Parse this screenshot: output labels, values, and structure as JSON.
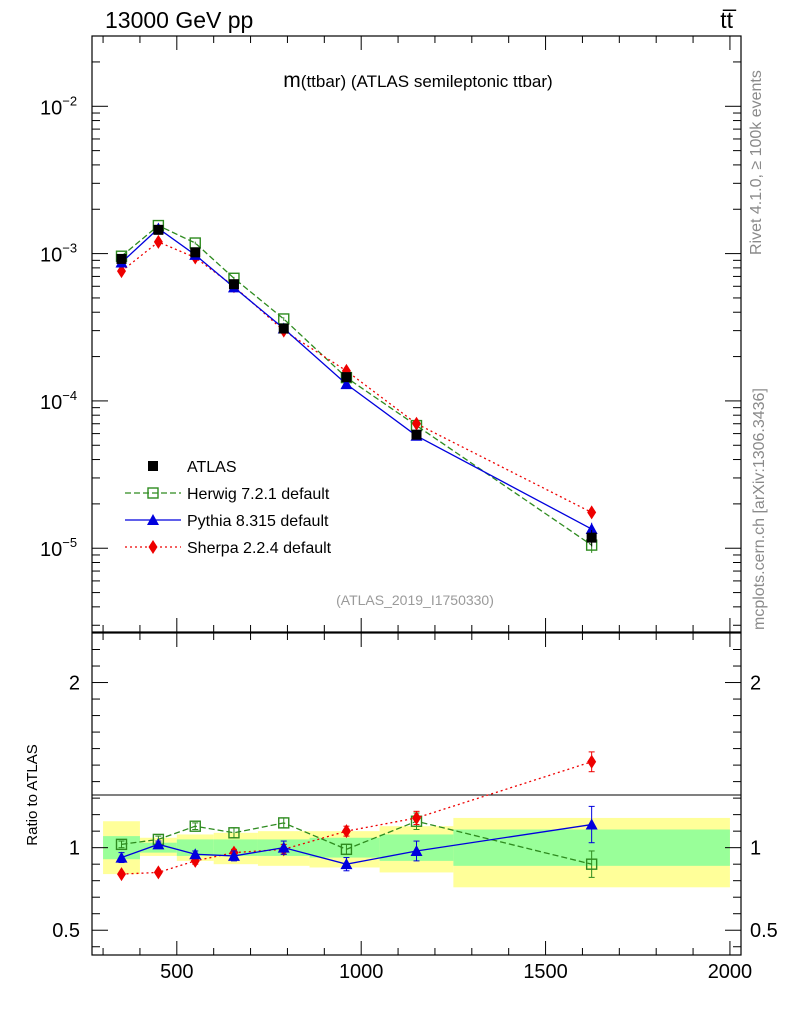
{
  "header": {
    "energy_label": "13000 GeV pp",
    "process_label": "tt̅"
  },
  "side_text": {
    "rivet": "Rivet 4.1.0, ≥ 100k events",
    "mcplots": "mcplots.cern.ch [arXiv:1306.3436]"
  },
  "colors": {
    "herwig": "#2e8b1f",
    "pythia": "#0000dd",
    "sherpa": "#ee0000",
    "atlas": "#000000",
    "band_inner": "#99ff99",
    "band_outer": "#ffff99",
    "analysis_tag": "#9a9a9a"
  },
  "chart_data": [
    {
      "type": "line",
      "panel": "main",
      "title": "m(ttbar) (ATLAS semileptonic ttbar)",
      "title_prefix": "m",
      "title_rest": "(ttbar) (ATLAS semileptonic ttbar)",
      "analysis_tag": "(ATLAS_2019_I1750330)",
      "y_scale": "log",
      "xlim": [
        270,
        2030
      ],
      "ylim": [
        2.7e-06,
        0.03
      ],
      "y_ticks": [
        {
          "base": "10",
          "exp": "−5",
          "value": 1e-05
        },
        {
          "base": "10",
          "exp": "−4",
          "value": 0.0001
        },
        {
          "base": "10",
          "exp": "−3",
          "value": 0.001
        },
        {
          "base": "10",
          "exp": "−2",
          "value": 0.01
        }
      ],
      "x": [
        350,
        450,
        550,
        655,
        790,
        960,
        1150,
        1625
      ],
      "series": [
        {
          "name": "ATLAS",
          "style": "data",
          "values": [
            0.00092,
            0.00145,
            0.00102,
            0.00062,
            0.00031,
            0.000145,
            5.9e-05,
            1.18e-05
          ],
          "errors": [
            4e-05,
            5e-05,
            4e-05,
            2.5e-05,
            1.5e-05,
            8e-06,
            4e-06,
            1.5e-06
          ]
        },
        {
          "name": "Herwig 7.2.1 default",
          "style": "herwig",
          "values": [
            0.00096,
            0.00155,
            0.00118,
            0.00068,
            0.00036,
            0.000144,
            6.8e-05,
            1.05e-05
          ],
          "errors": [
            2e-05,
            3e-05,
            2.5e-05,
            1.5e-05,
            1e-05,
            6e-06,
            3e-06,
            1.2e-06
          ]
        },
        {
          "name": "Pythia 8.315 default",
          "style": "pythia",
          "values": [
            0.00087,
            0.00148,
            0.00098,
            0.00059,
            0.00031,
            0.00013,
            5.8e-05,
            1.35e-05
          ],
          "errors": [
            2e-05,
            3e-05,
            2.5e-05,
            1.5e-05,
            1e-05,
            6e-06,
            3e-06,
            1.4e-06
          ]
        },
        {
          "name": "Sherpa 2.2.4 default",
          "style": "sherpa",
          "values": [
            0.00076,
            0.0012,
            0.00094,
            0.0006,
            0.0003,
            0.00016,
            7e-05,
            1.75e-05
          ],
          "errors": [
            2e-05,
            3e-05,
            2.5e-05,
            1.5e-05,
            1e-05,
            6e-06,
            3e-06,
            1.2e-06
          ]
        }
      ]
    },
    {
      "type": "line",
      "panel": "ratio",
      "ylabel": "Ratio to ATLAS",
      "xlim": [
        270,
        2030
      ],
      "ylim": [
        0.35,
        2.3
      ],
      "y_ticks": [
        {
          "label": "0.5",
          "value": 0.5
        },
        {
          "label": "1",
          "value": 1
        },
        {
          "label": "2",
          "value": 2
        }
      ],
      "x_ticks": [
        {
          "label": "500",
          "value": 500
        },
        {
          "label": "1000",
          "value": 1000
        },
        {
          "label": "1500",
          "value": 1500
        },
        {
          "label": "2000",
          "value": 2000
        }
      ],
      "bands": [
        {
          "x0": 300,
          "x1": 400,
          "inner": [
            0.93,
            1.07
          ],
          "outer": [
            0.84,
            1.16
          ]
        },
        {
          "x0": 400,
          "x1": 500,
          "inner": [
            0.97,
            1.03
          ],
          "outer": [
            0.95,
            1.06
          ]
        },
        {
          "x0": 500,
          "x1": 600,
          "inner": [
            0.95,
            1.05
          ],
          "outer": [
            0.92,
            1.08
          ]
        },
        {
          "x0": 600,
          "x1": 720,
          "inner": [
            0.95,
            1.05
          ],
          "outer": [
            0.9,
            1.09
          ]
        },
        {
          "x0": 720,
          "x1": 860,
          "inner": [
            0.95,
            1.05
          ],
          "outer": [
            0.89,
            1.1
          ]
        },
        {
          "x0": 860,
          "x1": 1050,
          "inner": [
            0.94,
            1.06
          ],
          "outer": [
            0.88,
            1.1
          ]
        },
        {
          "x0": 1050,
          "x1": 1250,
          "inner": [
            0.92,
            1.08
          ],
          "outer": [
            0.85,
            1.13
          ]
        },
        {
          "x0": 1250,
          "x1": 2000,
          "inner": [
            0.89,
            1.11
          ],
          "outer": [
            0.76,
            1.18
          ]
        }
      ],
      "x": [
        350,
        450,
        550,
        655,
        790,
        960,
        1150,
        1625
      ],
      "series": [
        {
          "name": "Herwig 7.2.1 default",
          "style": "herwig",
          "values": [
            1.02,
            1.05,
            1.13,
            1.09,
            1.15,
            0.99,
            1.16,
            0.9
          ],
          "errors": [
            0.02,
            0.02,
            0.02,
            0.03,
            0.03,
            0.03,
            0.05,
            0.08
          ]
        },
        {
          "name": "Pythia 8.315 default",
          "style": "pythia",
          "values": [
            0.94,
            1.02,
            0.96,
            0.95,
            1.0,
            0.9,
            0.98,
            1.14
          ],
          "errors": [
            0.03,
            0.02,
            0.02,
            0.03,
            0.04,
            0.04,
            0.06,
            0.11
          ]
        },
        {
          "name": "Sherpa 2.2.4 default",
          "style": "sherpa",
          "values": [
            0.84,
            0.85,
            0.92,
            0.97,
            0.99,
            1.1,
            1.18,
            1.52
          ],
          "errors": [
            0.01,
            0.01,
            0.02,
            0.02,
            0.03,
            0.03,
            0.04,
            0.06
          ]
        }
      ]
    }
  ]
}
